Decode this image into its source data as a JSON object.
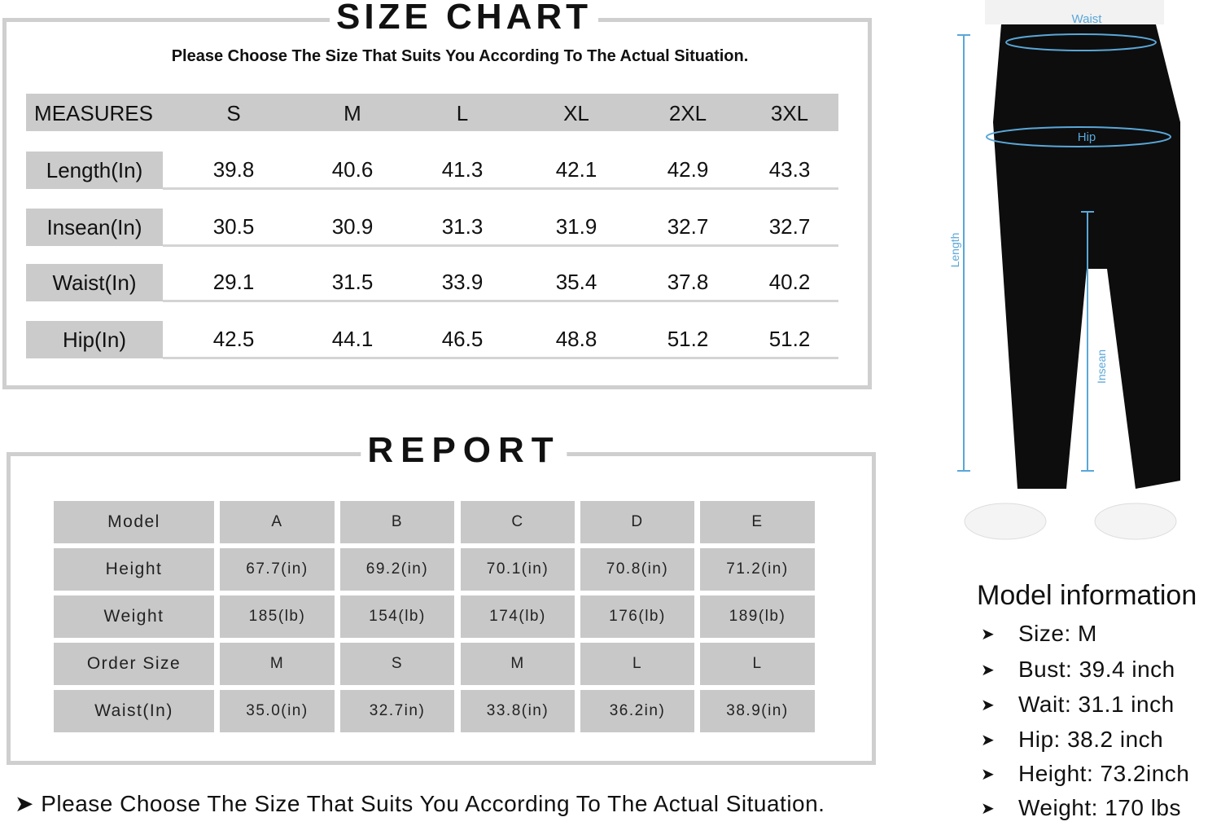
{
  "size_chart": {
    "title": "SIZE CHART",
    "subtitle": "Please Choose The Size That Suits You According To The Actual Situation.",
    "headers": [
      "MEASURES",
      "S",
      "M",
      "L",
      "XL",
      "2XL",
      "3XL"
    ],
    "rows": [
      {
        "label": "Length(In)",
        "values": [
          "39.8",
          "40.6",
          "41.3",
          "42.1",
          "42.9",
          "43.3"
        ]
      },
      {
        "label": "Insean(In)",
        "values": [
          "30.5",
          "30.9",
          "31.3",
          "31.9",
          "32.7",
          "32.7"
        ]
      },
      {
        "label": "Waist(In)",
        "values": [
          "29.1",
          "31.5",
          "33.9",
          "35.4",
          "37.8",
          "40.2"
        ]
      },
      {
        "label": "Hip(In)",
        "values": [
          "42.5",
          "44.1",
          "46.5",
          "48.8",
          "51.2",
          "51.2"
        ]
      }
    ]
  },
  "report": {
    "title": "REPORT",
    "rows": [
      {
        "label": "Model",
        "values": [
          "A",
          "B",
          "C",
          "D",
          "E"
        ]
      },
      {
        "label": "Height",
        "values": [
          "67.7(in)",
          "69.2(in)",
          "70.1(in)",
          "70.8(in)",
          "71.2(in)"
        ]
      },
      {
        "label": "Weight",
        "values": [
          "185(lb)",
          "154(lb)",
          "174(lb)",
          "176(lb)",
          "189(lb)"
        ]
      },
      {
        "label": "Order Size",
        "values": [
          "M",
          "S",
          "M",
          "L",
          "L"
        ]
      },
      {
        "label": "Waist(In)",
        "values": [
          "35.0(in)",
          "32.7in)",
          "33.8(in)",
          "36.2in)",
          "38.9(in)"
        ]
      }
    ]
  },
  "footer_note": "Please Choose The Size That Suits You According To The Actual Situation.",
  "diagram": {
    "labels": {
      "waist": "Waist",
      "hip": "Hip",
      "length": "Length",
      "insean": "Insean"
    },
    "accent": "#5aa7d8"
  },
  "model_info": {
    "title": "Model information",
    "items": [
      "Size:  M",
      "Bust: 39.4 inch",
      "Wait: 31.1 inch",
      "Hip: 38.2 inch",
      "Height: 73.2inch",
      "Weight: 170 lbs"
    ]
  }
}
